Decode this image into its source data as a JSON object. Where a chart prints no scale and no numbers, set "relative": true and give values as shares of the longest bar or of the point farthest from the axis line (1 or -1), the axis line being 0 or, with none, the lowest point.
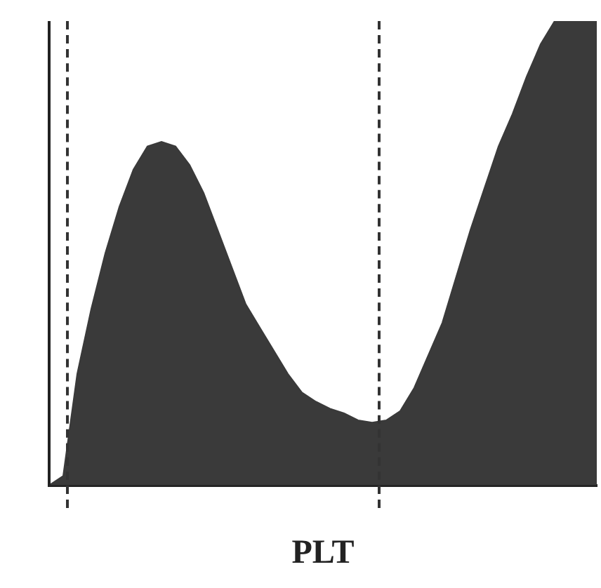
{
  "chart_data": {
    "type": "area",
    "xlabel": "PLT",
    "relative": true,
    "categories": [
      null,
      null,
      null,
      null,
      null,
      null,
      null,
      null,
      null,
      null,
      null,
      null,
      null,
      null,
      null,
      null,
      null,
      null,
      null,
      null,
      null,
      null,
      null,
      null,
      null,
      null,
      null,
      null,
      null,
      null,
      null,
      null,
      null,
      null,
      null,
      null,
      null,
      null,
      null,
      null
    ],
    "series": [
      {
        "color": "#3a3a3a",
        "values": [
          0,
          0.02,
          0.24,
          0.38,
          0.5,
          0.6,
          0.68,
          0.73,
          0.74,
          0.73,
          0.69,
          0.63,
          0.55,
          0.47,
          0.39,
          0.34,
          0.29,
          0.24,
          0.2,
          0.18,
          0.165,
          0.155,
          0.14,
          0.135,
          0.14,
          0.16,
          0.21,
          0.28,
          0.35,
          0.45,
          0.55,
          0.64,
          0.73,
          0.8,
          0.88,
          0.95,
          1,
          1,
          1,
          1
        ]
      }
    ],
    "grid": false,
    "legend": false
  }
}
